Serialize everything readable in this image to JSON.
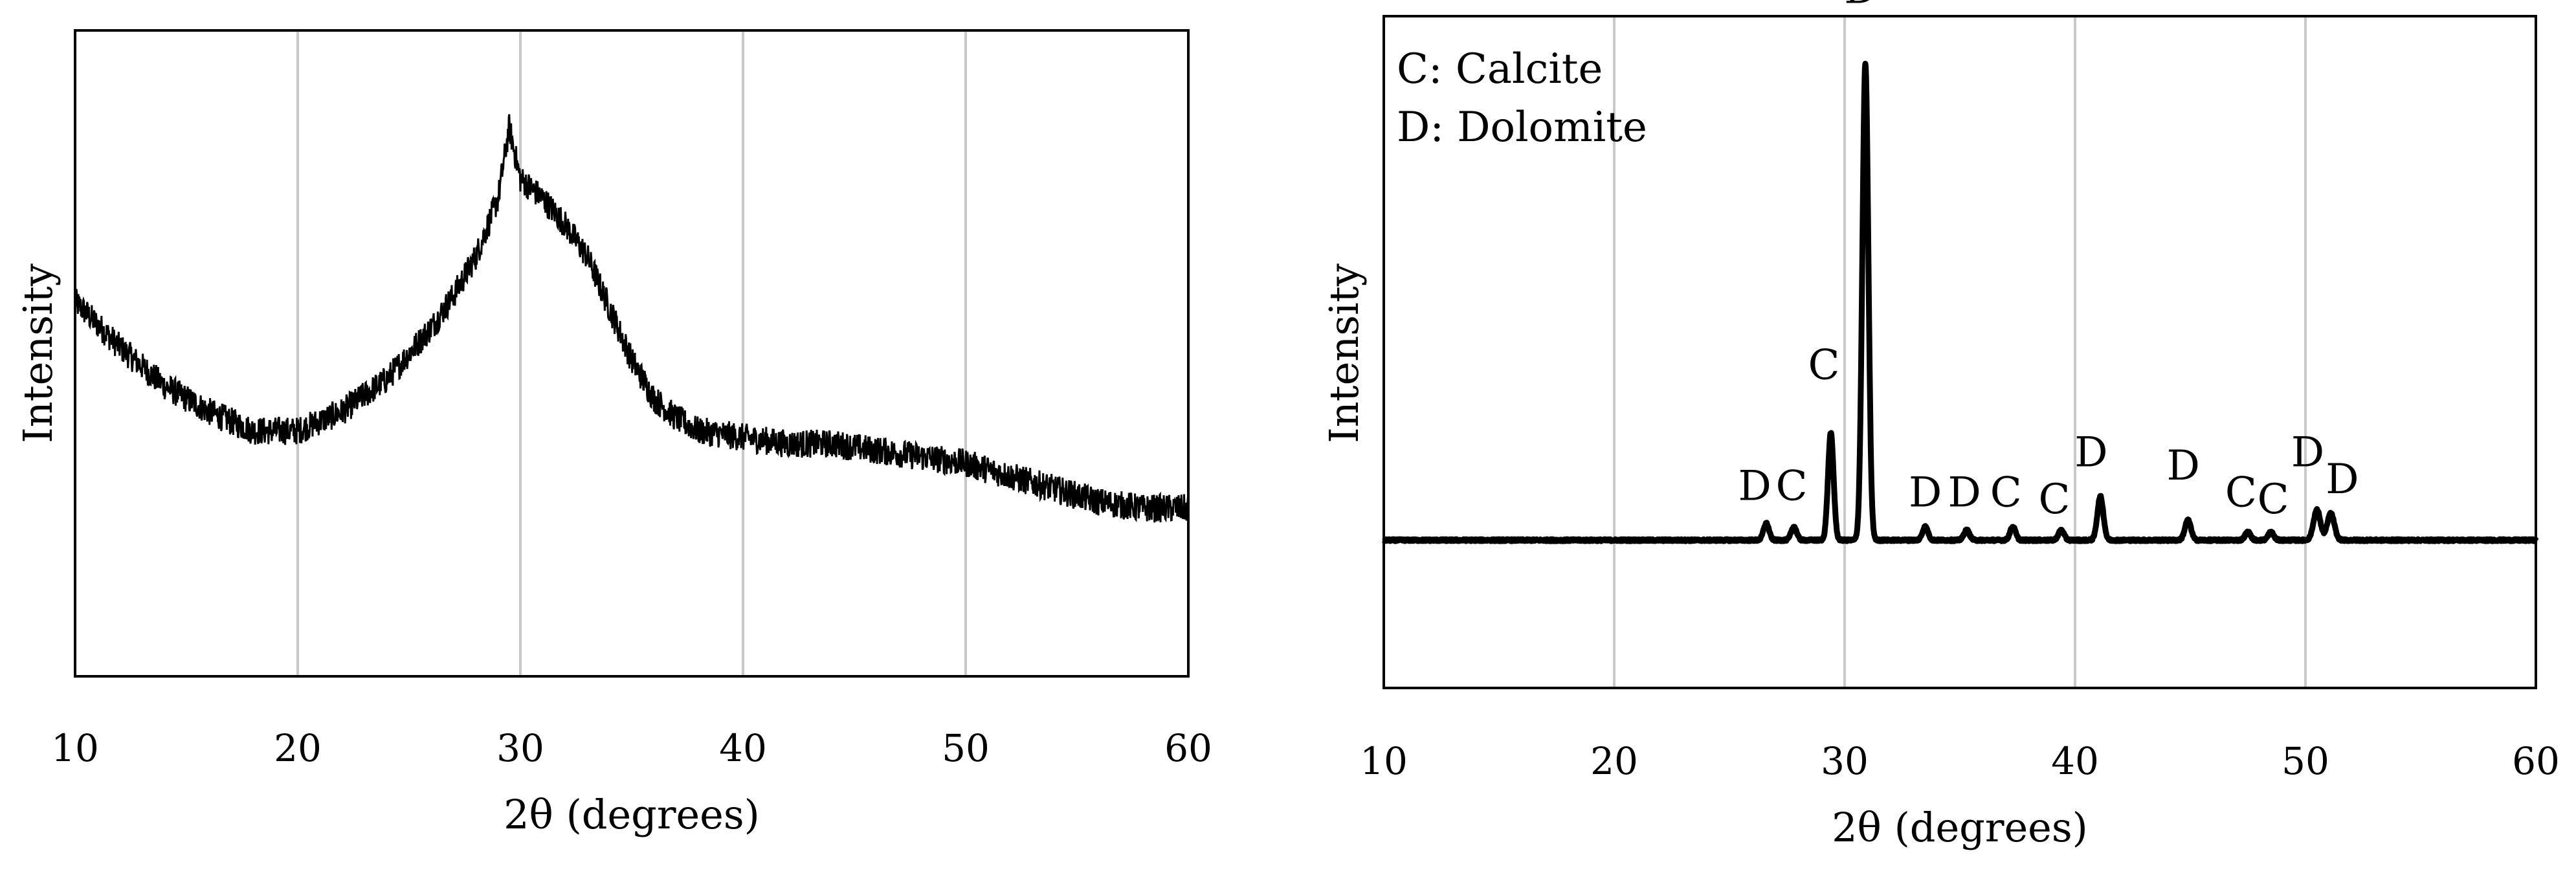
{
  "chart_data": [
    {
      "type": "line",
      "xlabel": "2θ (degrees)",
      "ylabel": "Intensity",
      "xlim": [
        10,
        60
      ],
      "xticks": [
        "10",
        "20",
        "30",
        "40",
        "50",
        "60"
      ],
      "grid": "vertical",
      "y_tick_labels": false,
      "series": [
        {
          "x": [
            10,
            12,
            14,
            16,
            18,
            20,
            22,
            24,
            26,
            27,
            28,
            29,
            29.5,
            30,
            31,
            32,
            33,
            34,
            35,
            36,
            37,
            38,
            40,
            42,
            44,
            46,
            48,
            50,
            52,
            54,
            56,
            58,
            60
          ],
          "y": [
            0.58,
            0.51,
            0.45,
            0.41,
            0.38,
            0.38,
            0.41,
            0.46,
            0.54,
            0.59,
            0.65,
            0.74,
            0.85,
            0.77,
            0.74,
            0.7,
            0.65,
            0.57,
            0.49,
            0.43,
            0.4,
            0.38,
            0.37,
            0.36,
            0.36,
            0.35,
            0.34,
            0.33,
            0.31,
            0.29,
            0.27,
            0.26,
            0.26
          ],
          "noise": 0.022
        }
      ]
    },
    {
      "type": "line",
      "xlabel": "2θ (degrees)",
      "ylabel": "Intensity",
      "xlim": [
        10,
        60
      ],
      "xticks": [
        "10",
        "20",
        "30",
        "40",
        "50",
        "60"
      ],
      "grid": "vertical",
      "y_tick_labels": false,
      "legend_lines": [
        "C: Calcite",
        "D: Dolomite"
      ],
      "baseline": 0.22,
      "peaks": [
        {
          "x": 26.6,
          "h": 0.025,
          "w": 0.12
        },
        {
          "x": 27.8,
          "h": 0.02,
          "w": 0.12
        },
        {
          "x": 29.4,
          "h": 0.16,
          "w": 0.12
        },
        {
          "x": 30.9,
          "h": 0.71,
          "w": 0.13
        },
        {
          "x": 33.5,
          "h": 0.02,
          "w": 0.12
        },
        {
          "x": 35.3,
          "h": 0.015,
          "w": 0.12
        },
        {
          "x": 37.3,
          "h": 0.02,
          "w": 0.12
        },
        {
          "x": 39.4,
          "h": 0.015,
          "w": 0.12
        },
        {
          "x": 41.1,
          "h": 0.065,
          "w": 0.13
        },
        {
          "x": 44.9,
          "h": 0.03,
          "w": 0.13
        },
        {
          "x": 47.5,
          "h": 0.012,
          "w": 0.12
        },
        {
          "x": 48.5,
          "h": 0.012,
          "w": 0.12
        },
        {
          "x": 50.5,
          "h": 0.045,
          "w": 0.15
        },
        {
          "x": 51.1,
          "h": 0.04,
          "w": 0.15
        }
      ],
      "annotations": [
        {
          "label": "D",
          "x": 26.1,
          "y": 0.28
        },
        {
          "label": "C",
          "x": 27.7,
          "y": 0.28
        },
        {
          "label": "C",
          "x": 29.1,
          "y": 0.46
        },
        {
          "label": "D",
          "x": 30.7,
          "y": 1.02
        },
        {
          "label": "D",
          "x": 33.5,
          "y": 0.27
        },
        {
          "label": "D",
          "x": 35.2,
          "y": 0.27
        },
        {
          "label": "C",
          "x": 37.0,
          "y": 0.27
        },
        {
          "label": "C",
          "x": 39.1,
          "y": 0.26
        },
        {
          "label": "D",
          "x": 40.7,
          "y": 0.33
        },
        {
          "label": "D",
          "x": 44.7,
          "y": 0.31
        },
        {
          "label": "C",
          "x": 47.2,
          "y": 0.27
        },
        {
          "label": "C",
          "x": 48.6,
          "y": 0.26
        },
        {
          "label": "D",
          "x": 50.1,
          "y": 0.33
        },
        {
          "label": "D",
          "x": 51.6,
          "y": 0.29
        }
      ]
    }
  ]
}
